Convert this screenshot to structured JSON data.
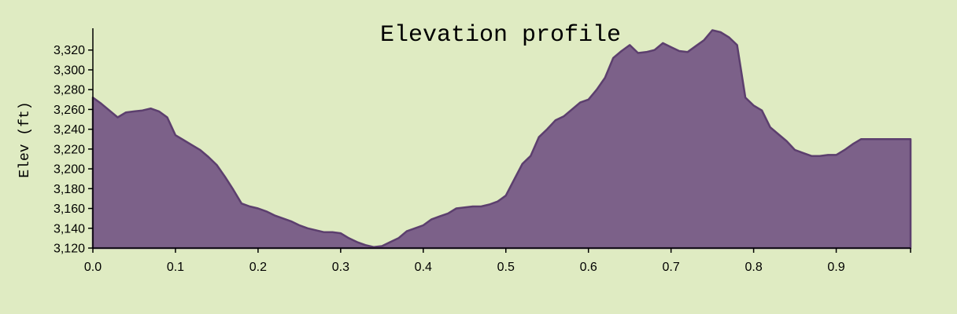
{
  "chart_data": {
    "type": "area",
    "title": "Elevation profile",
    "xlabel": "",
    "ylabel": "Elev (ft)",
    "xlim": [
      0,
      0.99
    ],
    "ylim": [
      3120,
      3342
    ],
    "x_ticks": [
      "0.0",
      "0.1",
      "0.2",
      "0.3",
      "0.4",
      "0.5",
      "0.6",
      "0.7",
      "0.8",
      "0.9"
    ],
    "y_ticks": [
      "3,120",
      "3,140",
      "3,160",
      "3,180",
      "3,200",
      "3,220",
      "3,240",
      "3,260",
      "3,280",
      "3,300",
      "3,320"
    ],
    "grid": false,
    "colors": {
      "fill": "#7c6189",
      "stroke": "#5c3f6e",
      "background": "#dfebc2"
    },
    "x": [
      0.0,
      0.01,
      0.02,
      0.03,
      0.04,
      0.05,
      0.06,
      0.07,
      0.08,
      0.09,
      0.1,
      0.11,
      0.12,
      0.13,
      0.14,
      0.15,
      0.16,
      0.17,
      0.18,
      0.19,
      0.2,
      0.21,
      0.22,
      0.23,
      0.24,
      0.25,
      0.26,
      0.27,
      0.28,
      0.29,
      0.3,
      0.31,
      0.32,
      0.33,
      0.34,
      0.35,
      0.36,
      0.37,
      0.38,
      0.39,
      0.4,
      0.41,
      0.42,
      0.43,
      0.44,
      0.45,
      0.46,
      0.47,
      0.48,
      0.49,
      0.5,
      0.51,
      0.52,
      0.53,
      0.54,
      0.55,
      0.56,
      0.57,
      0.58,
      0.59,
      0.6,
      0.61,
      0.62,
      0.63,
      0.64,
      0.65,
      0.66,
      0.67,
      0.68,
      0.69,
      0.7,
      0.71,
      0.72,
      0.73,
      0.74,
      0.75,
      0.76,
      0.77,
      0.78,
      0.79,
      0.8,
      0.81,
      0.82,
      0.83,
      0.84,
      0.85,
      0.86,
      0.87,
      0.88,
      0.89,
      0.9,
      0.91,
      0.92,
      0.93,
      0.94,
      0.95,
      0.96,
      0.97,
      0.98,
      0.99
    ],
    "y": [
      3272,
      3266,
      3259,
      3252,
      3257,
      3258,
      3259,
      3261,
      3258,
      3252,
      3234,
      3229,
      3224,
      3219,
      3212,
      3204,
      3192,
      3179,
      3165,
      3162,
      3160,
      3157,
      3153,
      3150,
      3147,
      3143,
      3140,
      3138,
      3136,
      3136,
      3135,
      3130,
      3126,
      3123,
      3121,
      3122,
      3126,
      3130,
      3137,
      3140,
      3143,
      3149,
      3152,
      3155,
      3160,
      3161,
      3162,
      3162,
      3164,
      3167,
      3173,
      3189,
      3205,
      3213,
      3232,
      3240,
      3249,
      3253,
      3260,
      3267,
      3270,
      3280,
      3292,
      3312,
      3319,
      3325,
      3317,
      3318,
      3320,
      3327,
      3323,
      3319,
      3318,
      3324,
      3330,
      3340,
      3338,
      3333,
      3325,
      3272,
      3264,
      3259,
      3242,
      3235,
      3228,
      3219,
      3216,
      3213,
      3213,
      3214,
      3214,
      3219,
      3225,
      3230,
      3230,
      3230,
      3230,
      3230,
      3230,
      3230
    ]
  }
}
